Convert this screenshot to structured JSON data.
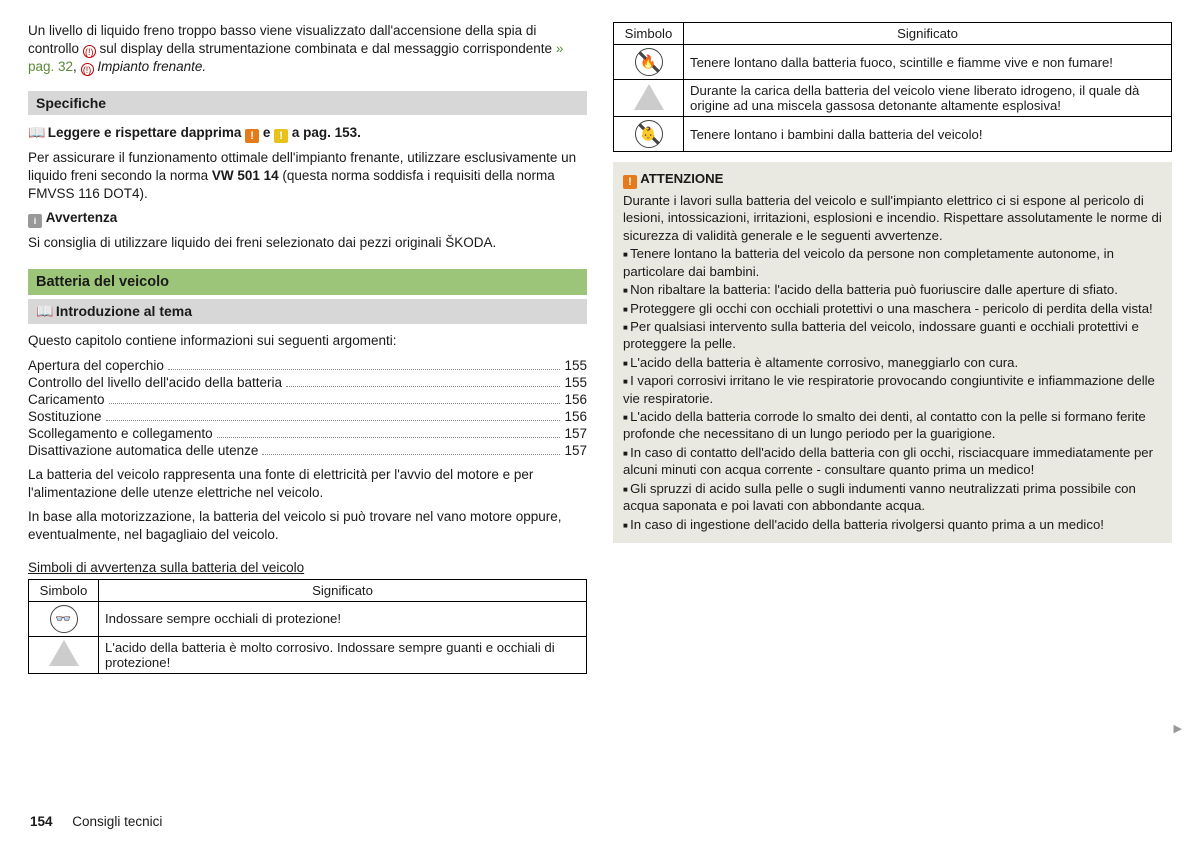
{
  "left": {
    "intro": {
      "p1a": "Un livello di liquido freno troppo basso viene visualizzato dall'accensione della spia di controllo ",
      "p1b": " sul display della strumentazione combinata e dal messaggio corrispondente ",
      "link": "» pag. 32",
      "p1c": ", ",
      "p1d": " Impianto frenante."
    },
    "specifiche": {
      "title": "Specifiche",
      "read_a": "Leggere e rispettare dapprima ",
      "read_b": " e ",
      "read_c": " a pag. 153.",
      "p1": "Per assicurare il funzionamento ottimale dell'impianto frenante, utilizzare esclusivamente un liquido freni secondo la norma ",
      "p1_bold": "VW 501 14",
      "p1_end": " (questa norma soddisfa i requisiti della norma FMVSS 116 DOT4).",
      "avv_head": "Avvertenza",
      "avv_text": "Si consiglia di utilizzare liquido dei freni selezionato dai pezzi originali ŠKODA."
    },
    "batteria": {
      "title": "Batteria del veicolo",
      "intro_title": "Introduzione al tema",
      "chapter_line": "Questo capitolo contiene informazioni sui seguenti argomenti:",
      "toc": [
        {
          "label": "Apertura del coperchio",
          "page": "155"
        },
        {
          "label": "Controllo del livello dell'acido della batteria",
          "page": "155"
        },
        {
          "label": "Caricamento",
          "page": "156"
        },
        {
          "label": "Sostituzione",
          "page": "156"
        },
        {
          "label": "Scollegamento e collegamento",
          "page": "157"
        },
        {
          "label": "Disattivazione automatica delle utenze",
          "page": "157"
        }
      ],
      "p1": "La batteria del veicolo rappresenta una fonte di elettricità per l'avvio del motore e per l'alimentazione delle utenze elettriche nel veicolo.",
      "p2": "In base alla motorizzazione, la batteria del veicolo si può trovare nel vano motore oppure, eventualmente, nel bagagliaio del veicolo.",
      "warn_title": "Simboli di avvertenza sulla batteria del veicolo",
      "table": {
        "h1": "Simbolo",
        "h2": "Significato",
        "rows": [
          "Indossare sempre occhiali di protezione!",
          "L'acido della batteria è molto corrosivo. Indossare sempre guanti e occhiali di protezione!"
        ]
      }
    }
  },
  "right": {
    "table": {
      "h1": "Simbolo",
      "h2": "Significato",
      "rows": [
        "Tenere lontano dalla batteria fuoco, scintille e fiamme vive e non fumare!",
        "Durante la carica della batteria del veicolo viene liberato idrogeno, il quale dà origine ad una miscela gassosa detonante altamente esplosiva!",
        "Tenere lontano i bambini dalla batteria del veicolo!"
      ]
    },
    "attention": {
      "head": "ATTENZIONE",
      "intro": "Durante i lavori sulla batteria del veicolo e sull'impianto elettrico ci si espone al pericolo di lesioni, intossicazioni, irritazioni, esplosioni e incendio. Rispettare assolutamente le norme di sicurezza di validità generale e le seguenti avvertenze.",
      "bullets": [
        "Tenere lontano la batteria del veicolo da persone non completamente autonome, in particolare dai bambini.",
        "Non ribaltare la batteria: l'acido della batteria può fuoriuscire dalle aperture di sfiato.",
        "Proteggere gli occhi con occhiali protettivi o una maschera - pericolo di perdita della vista!",
        "Per qualsiasi intervento sulla batteria del veicolo, indossare guanti e occhiali protettivi e proteggere la pelle.",
        "L'acido della batteria è altamente corrosivo, maneggiarlo con cura.",
        "I vapori corrosivi irritano le vie respiratorie provocando congiuntivite e infiammazione delle vie respiratorie.",
        "L'acido della batteria corrode lo smalto dei denti, al contatto con la pelle si formano ferite profonde che necessitano di un lungo periodo per la guarigione.",
        "In caso di contatto dell'acido della batteria con gli occhi, risciacquare immediatamente per alcuni minuti con acqua corrente - consultare quanto prima un medico!",
        "Gli spruzzi di acido sulla pelle o sugli indumenti vanno neutralizzati prima possibile con acqua saponata e poi lavati con abbondante acqua.",
        "In caso di ingestione dell'acido della batteria rivolgersi quanto prima a un medico!"
      ]
    }
  },
  "footer": {
    "page": "154",
    "section": "Consigli tecnici"
  }
}
